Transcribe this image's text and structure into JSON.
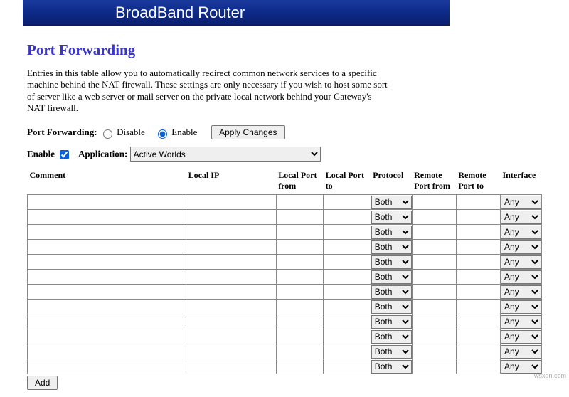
{
  "banner": {
    "title": "BroadBand Router"
  },
  "page": {
    "title": "Port Forwarding",
    "description": "Entries in this table allow you to automatically redirect common network services to a specific machine behind the NAT firewall. These settings are only necessary if you wish to host some sort of server like a web server or mail server on the private local network behind your Gateway's NAT firewall."
  },
  "toggle": {
    "label": "Port Forwarding:",
    "disable_label": "Disable",
    "enable_label": "Enable",
    "selected": "enable",
    "apply_label": "Apply Changes"
  },
  "filter": {
    "enable_label": "Enable",
    "enable_checked": true,
    "application_label": "Application:",
    "application_value": "Active Worlds"
  },
  "table": {
    "headers": {
      "comment": "Comment",
      "local_ip": "Local IP",
      "lp_from": "Local Port from",
      "lp_to": "Local Port to",
      "protocol": "Protocol",
      "rp_from": "Remote Port from",
      "rp_to": "Remote Port to",
      "interface": "Interface"
    },
    "row_count": 12,
    "protocol_default": "Both",
    "interface_default": "Any",
    "add_label": "Add"
  },
  "watermark": "wsxdn.com"
}
